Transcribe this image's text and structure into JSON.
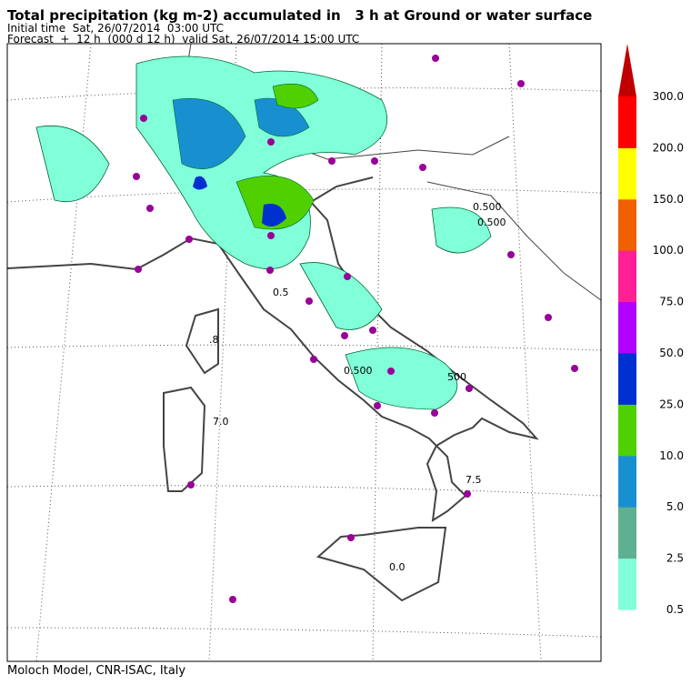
{
  "header": {
    "title": "Total precipitation (kg m-2) accumulated in   3 h at Ground or water surface",
    "initial_time": "Initial time  Sat, 26/07/2014  03:00 UTC",
    "forecast": "Forecast  +  12 h  (000 d 12 h)  valid Sat, 26/07/2014 15:00 UTC"
  },
  "footer": "Moloch Model, CNR-ISAC, Italy",
  "legend": {
    "labels": [
      "0.5",
      "2.5",
      "5.0",
      "10.0",
      "25.0",
      "50.0",
      "75.0",
      "100.0",
      "150.0",
      "200.0",
      "300.0"
    ],
    "colors": [
      "#80ffd8",
      "#5fb090",
      "#1890d0",
      "#50d000",
      "#0030d0",
      "#b000ff",
      "#ff2098",
      "#f06000",
      "#ffff00",
      "#ff0000"
    ],
    "extend_color": "#c00000"
  },
  "contour_labels": [
    "0.500",
    "0.5",
    "0.500",
    "0.500",
    "7.5",
    ".8",
    "7.0",
    "0.0",
    "500"
  ]
}
